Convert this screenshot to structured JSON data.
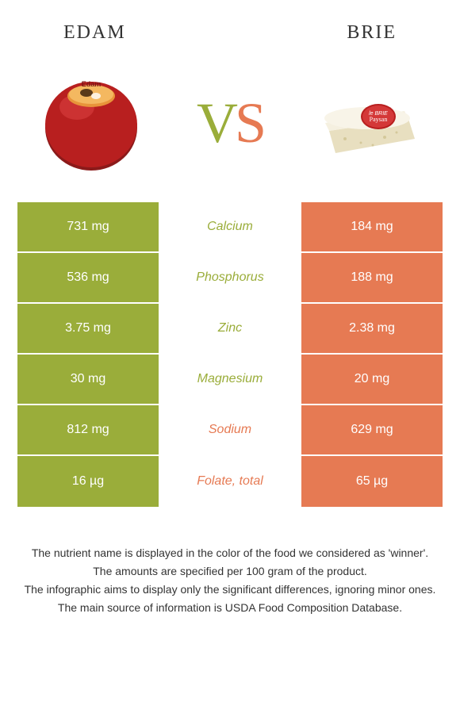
{
  "header": {
    "left_title": "EDAM",
    "right_title": "BRIE"
  },
  "vs": {
    "v": "V",
    "s": "S"
  },
  "colors": {
    "green": "#9aad3a",
    "orange": "#e67a53",
    "white": "#ffffff",
    "text": "#333333"
  },
  "table": {
    "rows": [
      {
        "left": "731 mg",
        "mid": "Calcium",
        "right": "184 mg",
        "left_bg": "#9aad3a",
        "mid_color": "#9aad3a",
        "right_bg": "#e67a53"
      },
      {
        "left": "536 mg",
        "mid": "Phosphorus",
        "right": "188 mg",
        "left_bg": "#9aad3a",
        "mid_color": "#9aad3a",
        "right_bg": "#e67a53"
      },
      {
        "left": "3.75 mg",
        "mid": "Zinc",
        "right": "2.38 mg",
        "left_bg": "#9aad3a",
        "mid_color": "#9aad3a",
        "right_bg": "#e67a53"
      },
      {
        "left": "30 mg",
        "mid": "Magnesium",
        "right": "20 mg",
        "left_bg": "#9aad3a",
        "mid_color": "#9aad3a",
        "right_bg": "#e67a53"
      },
      {
        "left": "812 mg",
        "mid": "Sodium",
        "right": "629 mg",
        "left_bg": "#9aad3a",
        "mid_color": "#e67a53",
        "right_bg": "#e67a53"
      },
      {
        "left": "16 µg",
        "mid": "Folate, total",
        "right": "65 µg",
        "left_bg": "#9aad3a",
        "mid_color": "#e67a53",
        "right_bg": "#e67a53"
      }
    ]
  },
  "footnotes": [
    "The nutrient name is displayed in the color of the food we considered as 'winner'.",
    "The amounts are specified per 100 gram of the product.",
    "The infographic aims to display only the significant differences, ignoring minor ones.",
    "The main source of information is USDA Food Composition Database."
  ]
}
